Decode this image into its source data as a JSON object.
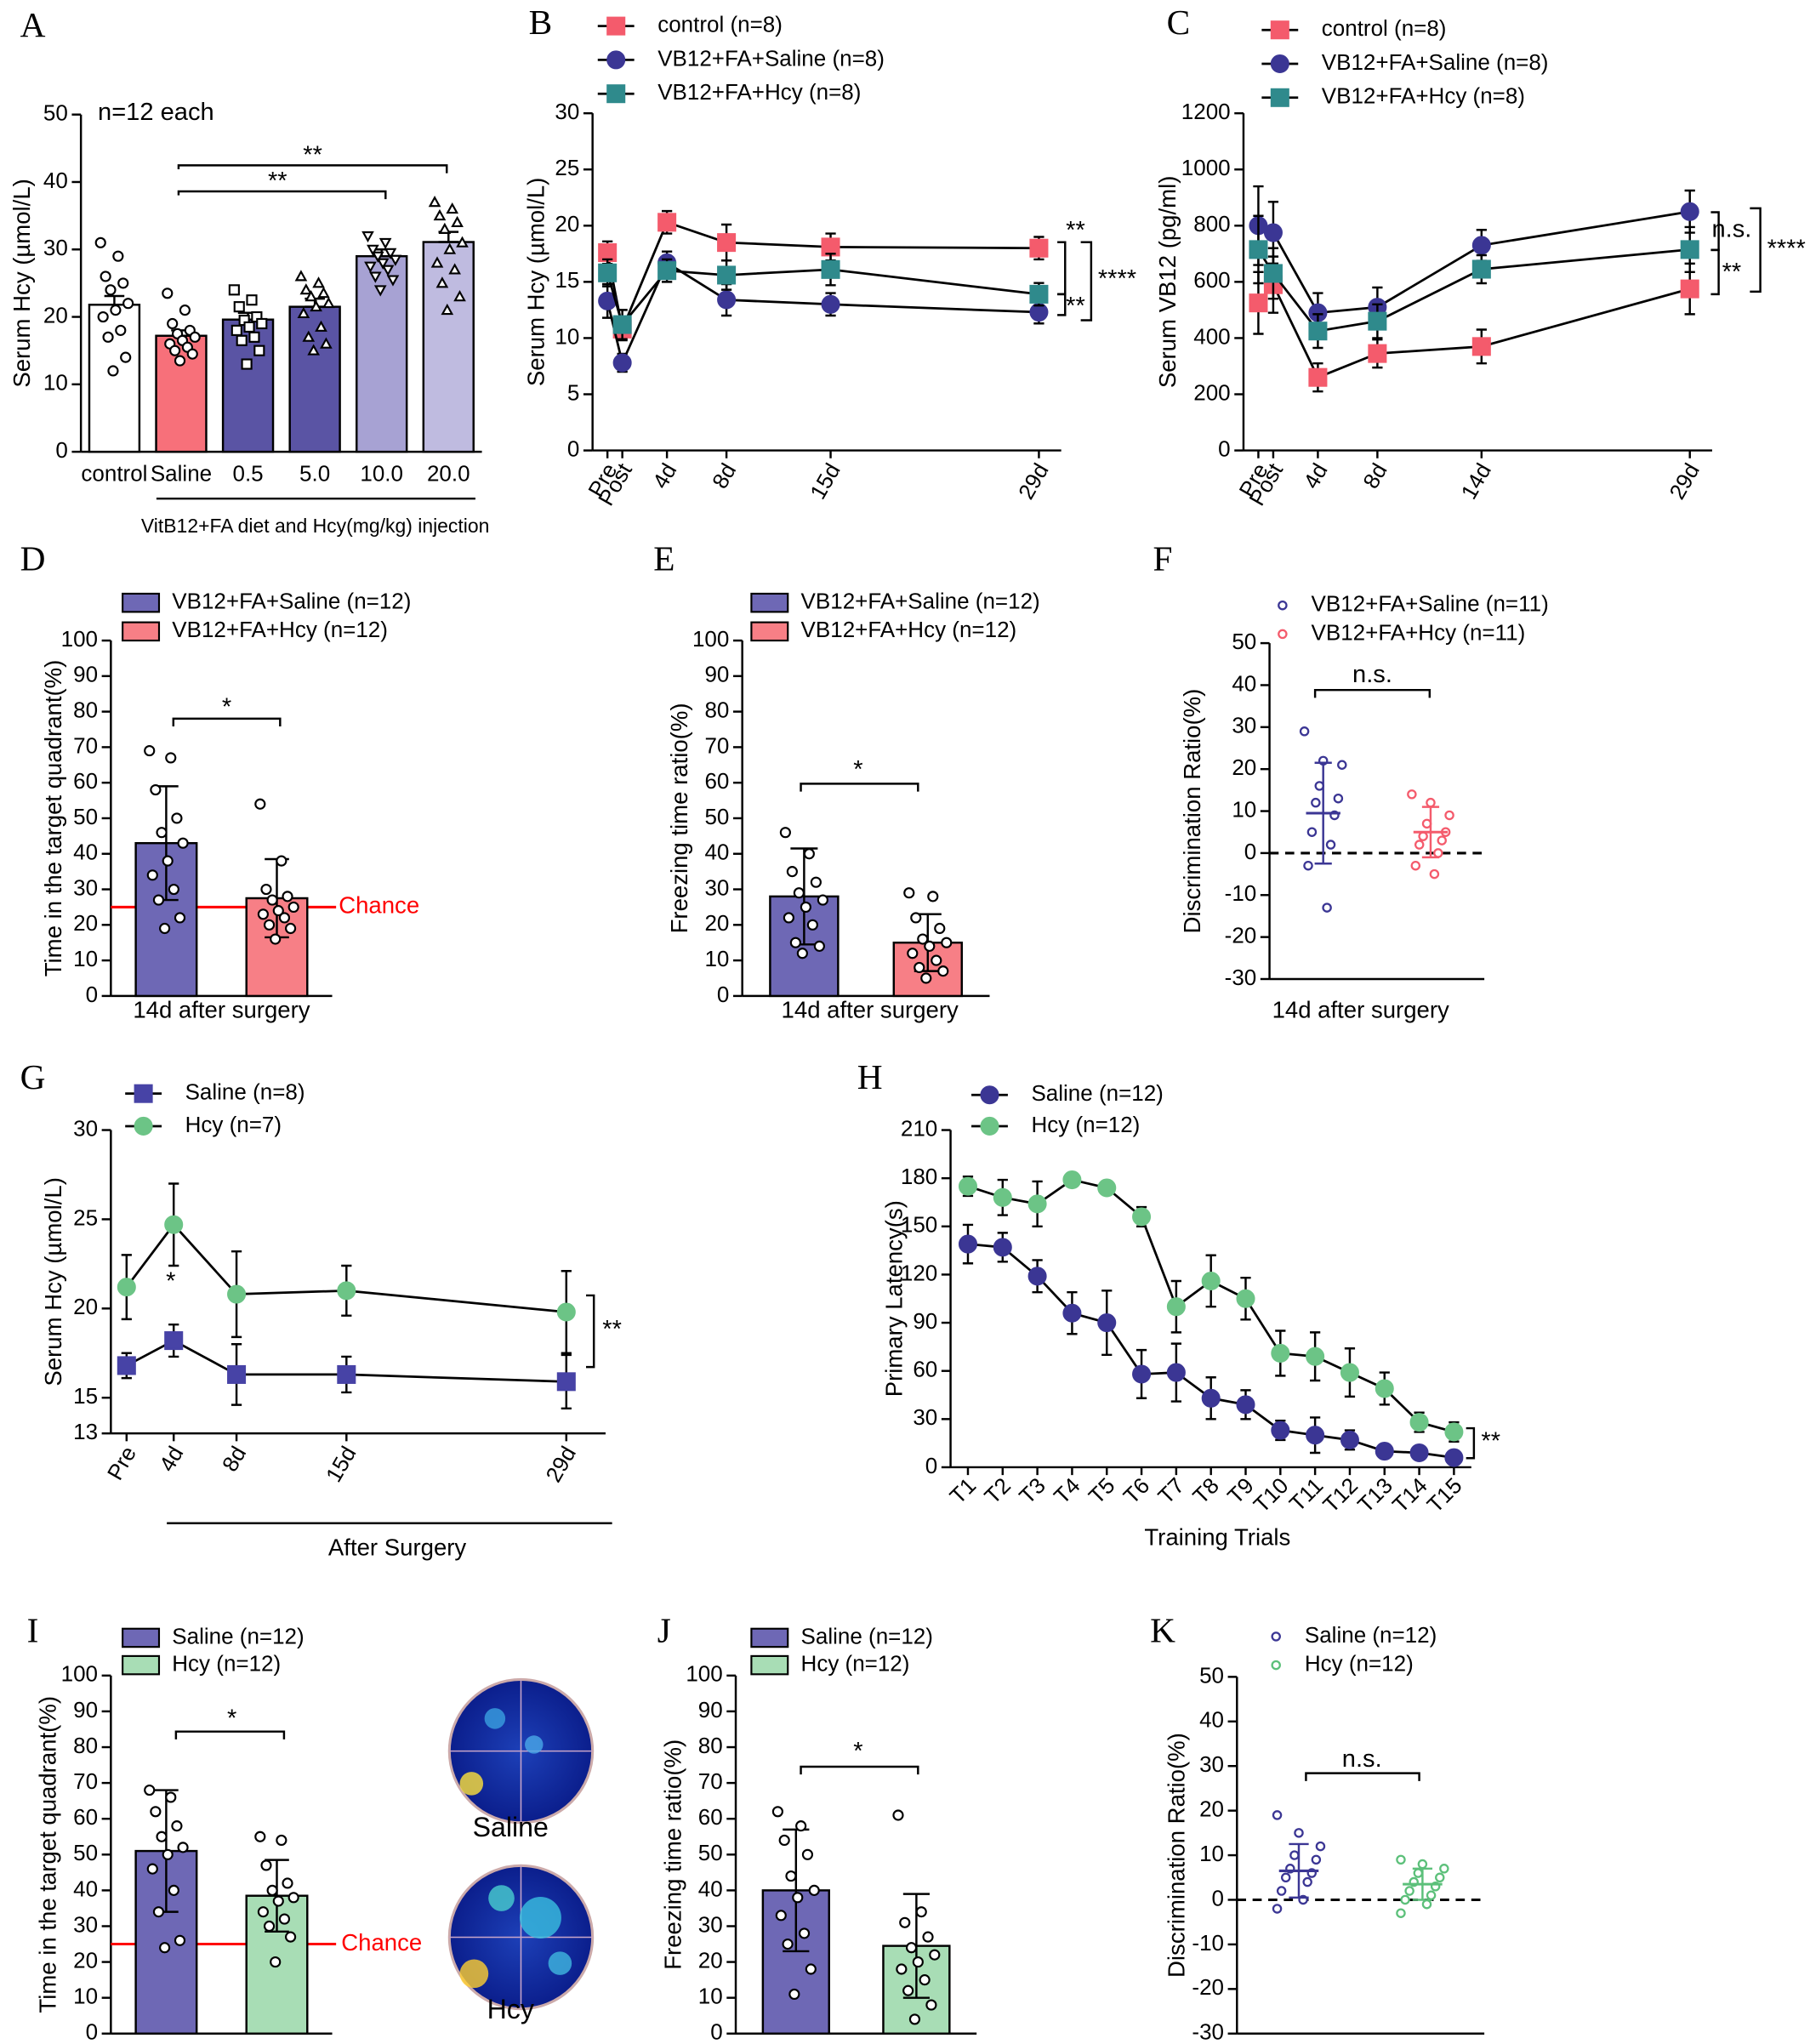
{
  "chart_data": [
    {
      "panel": "A",
      "type": "bar",
      "ylabel": "Serum Hcy (µmol/L)",
      "categories": [
        "control",
        "Saline",
        "0.5",
        "5.0",
        "10.0",
        "20.0"
      ],
      "values": [
        21.8,
        17.2,
        19.6,
        21.5,
        29.0,
        31.1
      ],
      "errors": [
        1.3,
        0.8,
        1.0,
        1.2,
        1.0,
        1.5
      ],
      "colors": [
        "#ffffff",
        "#f7707a",
        "#5a54a4",
        "#5a54a4",
        "#a7a2d3",
        "#bfbbe0"
      ],
      "markers": [
        "circle",
        "circle",
        "square",
        "triangle",
        "triangle-down",
        "triangle"
      ],
      "points": [
        [
          31,
          29,
          26,
          25,
          24,
          22,
          21,
          20,
          18,
          17,
          14,
          12
        ],
        [
          23.5,
          21,
          19,
          18,
          17.5,
          17,
          16.5,
          16,
          15.5,
          15,
          14.5,
          13.5
        ],
        [
          24,
          22.5,
          21.5,
          20,
          19.5,
          19,
          18.5,
          18,
          17,
          16.5,
          15,
          13
        ],
        [
          26,
          25,
          24,
          23.5,
          23,
          22,
          21.5,
          20.5,
          18.5,
          17,
          16,
          15
        ],
        [
          32,
          31,
          30,
          29.5,
          29,
          28.5,
          28,
          27.5,
          27,
          26,
          25.5,
          24
        ],
        [
          37,
          36,
          35,
          34,
          33,
          31,
          30,
          28,
          27,
          25,
          23,
          21
        ]
      ],
      "ylim": [
        0,
        50
      ],
      "yticks": [
        0,
        10,
        20,
        30,
        40,
        50
      ],
      "group_label": "VitB12+FA diet and Hcy(mg/kg) injection",
      "annotations": [
        "n=12 each",
        "**",
        "**"
      ]
    },
    {
      "panel": "B",
      "type": "line",
      "ylabel": "Serum Hcy (µmol/L)",
      "x": [
        0,
        1,
        4,
        8,
        15,
        29
      ],
      "xlim": [
        -1,
        30.5
      ],
      "xticks": [
        {
          "value": 0,
          "label": "Pre"
        },
        {
          "value": 1,
          "label": "Post"
        },
        {
          "value": 4,
          "label": "4d"
        },
        {
          "value": 8,
          "label": "8d"
        },
        {
          "value": 15,
          "label": "15d"
        },
        {
          "value": 29,
          "label": "29d"
        }
      ],
      "ylim": [
        0,
        30
      ],
      "yticks": [
        0,
        5,
        10,
        15,
        20,
        25,
        30
      ],
      "series": [
        {
          "name": "control (n=8)",
          "color": "#f45b6c",
          "marker": "square",
          "values": [
            17.6,
            10.8,
            20.3,
            18.5,
            18.1,
            18.0
          ],
          "errors": [
            1.0,
            1.0,
            1.0,
            1.6,
            1.2,
            1.0
          ]
        },
        {
          "name": "VB12+FA+Saline (n=8)",
          "color": "#3b3694",
          "marker": "circle",
          "values": [
            13.3,
            7.8,
            16.7,
            13.4,
            13.0,
            12.3
          ],
          "errors": [
            1.5,
            0.8,
            1.0,
            1.4,
            1.0,
            1.0
          ]
        },
        {
          "name": "VB12+FA+Hcy (n=8)",
          "color": "#2f8a8c",
          "marker": "square",
          "values": [
            15.8,
            11.2,
            16.0,
            15.6,
            16.1,
            13.9
          ],
          "errors": [
            1.2,
            1.3,
            1.0,
            1.3,
            1.4,
            1.0
          ]
        }
      ],
      "annotations": [
        "**",
        "**",
        "****"
      ]
    },
    {
      "panel": "C",
      "type": "line",
      "ylabel": "Serum VB12 (pg/ml)",
      "x": [
        0,
        1,
        4,
        8,
        15,
        29
      ],
      "xlim": [
        -1,
        30.5
      ],
      "xticks": [
        {
          "value": 0,
          "label": "Pre"
        },
        {
          "value": 1,
          "label": "Post"
        },
        {
          "value": 4,
          "label": "4d"
        },
        {
          "value": 8,
          "label": "8d"
        },
        {
          "value": 15,
          "label": "14d"
        },
        {
          "value": 29,
          "label": "29d"
        }
      ],
      "ylim": [
        0,
        1200
      ],
      "yticks": [
        0,
        200,
        400,
        600,
        800,
        1000,
        1200
      ],
      "series": [
        {
          "name": "control (n=8)",
          "color": "#f45b6c",
          "marker": "square",
          "values": [
            525,
            590,
            260,
            345,
            370,
            575
          ],
          "errors": [
            110,
            100,
            50,
            50,
            60,
            90
          ]
        },
        {
          "name": "VB12+FA+Saline (n=8)",
          "color": "#3b3694",
          "marker": "circle",
          "values": [
            800,
            775,
            490,
            510,
            730,
            850
          ],
          "errors": [
            140,
            110,
            70,
            70,
            55,
            75
          ]
        },
        {
          "name": "VB12+FA+Hcy (n=8)",
          "color": "#2f8a8c",
          "marker": "square",
          "values": [
            715,
            630,
            425,
            460,
            645,
            715
          ],
          "errors": [
            120,
            90,
            60,
            60,
            50,
            80
          ]
        }
      ],
      "annotations": [
        "n.s.",
        "**",
        "****"
      ]
    },
    {
      "panel": "D",
      "type": "bar",
      "ylabel": "Time in the target quadrant(%)",
      "xlabel": "14d after surgery",
      "ylim": [
        0,
        100
      ],
      "yticks": [
        0,
        10,
        20,
        30,
        40,
        50,
        60,
        70,
        80,
        90,
        100
      ],
      "series": [
        {
          "name": "VB12+FA+Saline (n=12)",
          "color": "#6e68b5",
          "values": [
            43
          ],
          "errors": [
            16
          ],
          "points": [
            [
              69,
              67,
              58,
              50,
              46,
              43,
              38,
              34,
              30,
              27,
              22,
              19
            ]
          ]
        },
        {
          "name": "VB12+FA+Hcy (n=12)",
          "color": "#f77f86",
          "values": [
            27.5
          ],
          "errors": [
            11
          ],
          "points": [
            [
              54,
              38,
              30,
              28,
              27,
              25,
              24,
              23,
              22,
              20,
              19,
              16
            ]
          ]
        }
      ],
      "reference": {
        "value": 25,
        "label": "Chance",
        "color": "#ff0000"
      },
      "annotations": [
        "*"
      ]
    },
    {
      "panel": "E",
      "type": "bar",
      "ylabel": "Freezing time ratio(%)",
      "xlabel": "14d after surgery",
      "ylim": [
        0,
        100
      ],
      "yticks": [
        0,
        10,
        20,
        30,
        40,
        50,
        60,
        70,
        80,
        90,
        100
      ],
      "series": [
        {
          "name": "VB12+FA+Saline (n=12)",
          "color": "#6e68b5",
          "values": [
            28
          ],
          "errors": [
            13.5
          ],
          "points": [
            [
              46,
              40,
              35,
              32,
              29,
              27,
              25,
              22,
              20,
              15,
              14,
              12
            ]
          ]
        },
        {
          "name": "VB12+FA+Hcy (n=12)",
          "color": "#f77f86",
          "values": [
            15
          ],
          "errors": [
            8
          ],
          "points": [
            [
              29,
              28,
              22,
              19,
              16,
              15,
              14,
              12,
              10,
              8,
              7,
              5
            ]
          ]
        }
      ],
      "annotations": [
        "*"
      ]
    },
    {
      "panel": "F",
      "type": "dot",
      "ylabel": "Discrimination Ratio(%)",
      "xlabel": "14d after surgery",
      "ylim": [
        -30,
        50
      ],
      "yticks": [
        -30,
        -20,
        -10,
        0,
        10,
        20,
        30,
        40,
        50
      ],
      "series": [
        {
          "name": "VB12+FA+Saline (n=11)",
          "color": "#3b3694",
          "values": [
            9.5
          ],
          "errors": [
            12
          ],
          "points": [
            [
              29,
              22,
              21,
              16,
              13,
              12,
              9,
              5,
              2,
              -3,
              -13
            ]
          ]
        },
        {
          "name": "VB12+FA+Hcy (n=11)",
          "color": "#f45b6c",
          "values": [
            5
          ],
          "errors": [
            6
          ],
          "points": [
            [
              14,
              12,
              9,
              7,
              5,
              4,
              3,
              2,
              0,
              -3,
              -5
            ]
          ]
        }
      ],
      "reference": {
        "value": 0,
        "dashed": true
      },
      "annotations": [
        "n.s."
      ]
    },
    {
      "panel": "G",
      "type": "line",
      "ylabel": "Serum Hcy (µmol/L)",
      "xlabel": "After Surgery",
      "x": [
        1,
        4,
        8,
        15,
        29
      ],
      "xlim": [
        0,
        31.5
      ],
      "xticks": [
        {
          "value": 1,
          "label": "Pre"
        },
        {
          "value": 4,
          "label": "4d"
        },
        {
          "value": 8,
          "label": "8d"
        },
        {
          "value": 15,
          "label": "15d"
        },
        {
          "value": 29,
          "label": "29d"
        }
      ],
      "ylim": [
        13,
        30
      ],
      "yticks": [
        13,
        15,
        20,
        25,
        30
      ],
      "series": [
        {
          "name": "Saline (n=8)",
          "color": "#4743a6",
          "marker": "square",
          "values": [
            16.8,
            18.2,
            16.3,
            16.3,
            15.9
          ],
          "errors": [
            0.7,
            0.9,
            1.7,
            1.0,
            1.5
          ]
        },
        {
          "name": "Hcy (n=7)",
          "color": "#6cc486",
          "marker": "circle",
          "values": [
            21.2,
            24.7,
            20.8,
            21.0,
            19.8
          ],
          "errors": [
            1.8,
            2.3,
            2.4,
            1.4,
            2.3
          ]
        }
      ],
      "annotations": [
        "*",
        "**"
      ]
    },
    {
      "panel": "H",
      "type": "line",
      "ylabel": "Primary Latency(s)",
      "xlabel": "Training Trials",
      "categories": [
        "T1",
        "T2",
        "T3",
        "T4",
        "T5",
        "T6",
        "T7",
        "T8",
        "T9",
        "T10",
        "T11",
        "T12",
        "T13",
        "T14",
        "T15"
      ],
      "ylim": [
        0,
        210
      ],
      "yticks": [
        0,
        30,
        60,
        90,
        120,
        150,
        180,
        210
      ],
      "series": [
        {
          "name": "Saline (n=12)",
          "color": "#3b3694",
          "marker": "circle",
          "values": [
            139,
            137,
            119,
            96,
            90,
            58,
            59,
            43,
            39,
            23,
            20,
            17,
            10,
            9,
            6
          ],
          "errors": [
            12,
            9,
            10,
            13,
            20,
            15,
            18,
            13,
            9,
            6,
            11,
            6,
            2,
            2,
            2
          ]
        },
        {
          "name": "Hcy (n=12)",
          "color": "#6cc486",
          "marker": "circle",
          "values": [
            175,
            168,
            164,
            179,
            174,
            156,
            100,
            116,
            105,
            71,
            69,
            59,
            49,
            28,
            22
          ],
          "errors": [
            6,
            11,
            14,
            3,
            4,
            6,
            16,
            16,
            13,
            14,
            15,
            15,
            10,
            6,
            6
          ]
        }
      ],
      "annotations": [
        "**"
      ]
    },
    {
      "panel": "I",
      "type": "bar",
      "ylabel": "Time in the target quadrant(%)",
      "ylim": [
        0,
        100
      ],
      "yticks": [
        0,
        10,
        20,
        30,
        40,
        50,
        60,
        70,
        80,
        90,
        100
      ],
      "series": [
        {
          "name": "Saline (n=12)",
          "color": "#6e68b5",
          "values": [
            51
          ],
          "errors": [
            17
          ],
          "points": [
            [
              68,
              66,
              62,
              58,
              55,
              52,
              50,
              46,
              40,
              34,
              26,
              24
            ]
          ]
        },
        {
          "name": "Hcy (n=12)",
          "color": "#a8ddb5",
          "values": [
            38.5
          ],
          "errors": [
            10
          ],
          "points": [
            [
              55,
              54,
              47,
              42,
              40,
              38,
              37,
              34,
              32,
              30,
              27,
              20
            ]
          ]
        }
      ],
      "reference": {
        "value": 25,
        "label": "Chance",
        "color": "#ff0000"
      },
      "annotations": [
        "*"
      ],
      "images": [
        "Saline",
        "Hcy"
      ]
    },
    {
      "panel": "J",
      "type": "bar",
      "ylabel": "Freezing time ratio(%)",
      "ylim": [
        0,
        100
      ],
      "yticks": [
        0,
        10,
        20,
        30,
        40,
        50,
        60,
        70,
        80,
        90,
        100
      ],
      "series": [
        {
          "name": "Saline (n=12)",
          "color": "#6e68b5",
          "values": [
            40
          ],
          "errors": [
            17
          ],
          "points": [
            [
              62,
              58,
              54,
              50,
              44,
              40,
              38,
              33,
              28,
              25,
              18,
              11
            ]
          ]
        },
        {
          "name": "Hcy (n=12)",
          "color": "#a8ddb5",
          "values": [
            24.5
          ],
          "errors": [
            14.5
          ],
          "points": [
            [
              61,
              34,
              31,
              27,
              24,
              22,
              20,
              18,
              15,
              12,
              8,
              4
            ]
          ]
        }
      ],
      "annotations": [
        "*"
      ]
    },
    {
      "panel": "K",
      "type": "dot",
      "ylabel": "Discrimination Ratio(%)",
      "ylim": [
        -30,
        50
      ],
      "yticks": [
        -30,
        -20,
        -10,
        0,
        10,
        20,
        30,
        40,
        50
      ],
      "series": [
        {
          "name": "Saline (n=12)",
          "color": "#3b3694",
          "values": [
            6.5
          ],
          "errors": [
            6
          ],
          "points": [
            [
              19,
              15,
              12,
              10,
              9,
              7,
              6,
              5,
              4,
              2,
              0,
              -2
            ]
          ]
        },
        {
          "name": "Hcy (n=12)",
          "color": "#5cc07a",
          "values": [
            3.5
          ],
          "errors": [
            3.5
          ],
          "points": [
            [
              9,
              8,
              7,
              6,
              5,
              4,
              3,
              2,
              1,
              0,
              -1,
              -3
            ]
          ]
        }
      ],
      "reference": {
        "value": 0,
        "dashed": true
      },
      "annotations": [
        "n.s."
      ]
    }
  ]
}
